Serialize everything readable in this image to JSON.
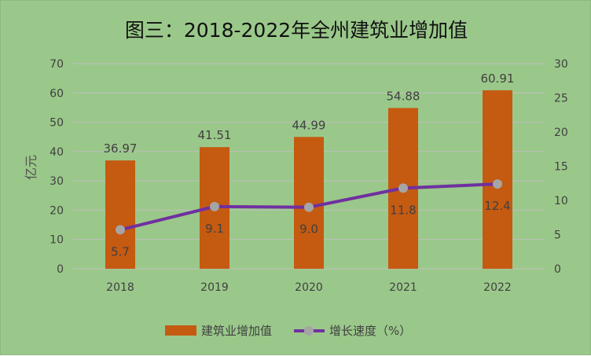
{
  "chart_data": {
    "type": "bar+line",
    "title": "图三：2018-2022年全州建筑业增加值",
    "categories": [
      "2018",
      "2019",
      "2020",
      "2021",
      "2022"
    ],
    "series": [
      {
        "name": "建筑业增加值",
        "type": "bar",
        "axis": "left",
        "values": [
          36.97,
          41.51,
          44.99,
          54.88,
          60.91
        ],
        "labels": [
          "36.97",
          "41.51",
          "44.99",
          "54.88",
          "60.91"
        ],
        "color": "#c55a11"
      },
      {
        "name": "增长速度（%）",
        "type": "line",
        "axis": "right",
        "values": [
          5.7,
          9.1,
          9.0,
          11.8,
          12.4
        ],
        "labels": [
          "5.7",
          "9.1",
          "9.0",
          "11.8",
          "12.4"
        ],
        "color": "#7030a0",
        "marker_color": "#a5a5a5"
      }
    ],
    "ylabel": "亿元",
    "ylim": [
      0,
      70
    ],
    "yticks": [
      "0",
      "10",
      "20",
      "30",
      "40",
      "50",
      "60",
      "70"
    ],
    "y2lim": [
      0,
      30
    ],
    "y2ticks": [
      "0",
      "5",
      "10",
      "15",
      "20",
      "25",
      "30"
    ],
    "grid": true,
    "legend": "bottom-center",
    "background": "#9ac88a",
    "gridline_color": "#bfbfbf"
  }
}
